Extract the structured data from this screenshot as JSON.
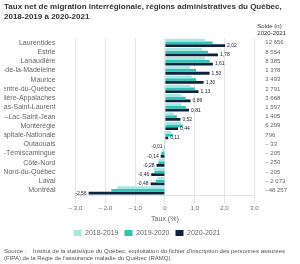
{
  "chart_data": {
    "type": "bar",
    "orientation": "horizontal",
    "title": "Taux net de migration interrégionale, régions administratives du Québec, 2018-2019 à 2020-2021",
    "source": "Source :    Institut de la statistique du Québec, exploitation du fichier d'inscription des personnes assurées (FIPA) de la Régie de l'assurance maladie du Québec (RAMQ).",
    "xlabel": "Taux (%)",
    "categories": [
      "Laurentides",
      "Estrie",
      "Lanaudière",
      "Gaspésie–Îles-de-la-Madeleine",
      "Maurice",
      "Centre-du-Québec",
      "Chaudière-Appalaches",
      "Bas-Saint-Laurent",
      "Saguenay–Lac-Saint-Jean",
      "Montérégie",
      "Capitale-Nationale",
      "Outaouais",
      "Abitibi-Témiscamingue",
      "Côte-Nord",
      "Nord-du-Québec",
      "Laval",
      "Montréal"
    ],
    "right_labels_title": [
      "Solde (n)",
      "2020-2021"
    ],
    "right_labels": [
      "12 656",
      "8 554",
      "8 385",
      "1 378",
      "3 493",
      "2 791",
      "3 668",
      "1 597",
      "1 405",
      "6 299",
      "796",
      "– 33",
      "– 205",
      "– 250",
      "– 205",
      "– 2 073",
      "–48 257"
    ],
    "series": [
      {
        "name": "2018-2019",
        "color": "#a8e8e2",
        "values": [
          1.35,
          1.25,
          1.35,
          0.85,
          0.9,
          0.85,
          0.55,
          0.55,
          0.3,
          0.55,
          0.2,
          0.05,
          -0.1,
          -0.2,
          -0.38,
          -0.25,
          -1.6
        ]
      },
      {
        "name": "2019-2020",
        "color": "#2ec4b6",
        "values": [
          1.6,
          1.45,
          1.5,
          1.05,
          1.05,
          1.0,
          0.7,
          0.7,
          0.4,
          0.6,
          0.28,
          -0.02,
          -0.12,
          -0.22,
          -0.35,
          -0.3,
          -1.8
        ]
      },
      {
        "name": "2020-2021",
        "color": "#0d2240",
        "values": [
          2.02,
          1.78,
          1.61,
          1.5,
          1.3,
          1.13,
          0.86,
          0.81,
          0.52,
          0.44,
          0.11,
          -0.01,
          -0.14,
          -0.28,
          -0.46,
          -0.48,
          -2.56
        ],
        "data_labels": true,
        "value_labels": [
          "2,02",
          "1,78",
          "1,61",
          "1,50",
          "1,30",
          "1,13",
          "0,86",
          "0,81",
          "0,52",
          "0,44",
          "0,11",
          "-0,01",
          "-0,14",
          "-0,28",
          "-0,46",
          "-0,48",
          "-2,56"
        ]
      }
    ],
    "xlim": [
      -3,
      3
    ],
    "xticks": [
      {
        "value": -3,
        "label": "– 3,0"
      },
      {
        "value": -2,
        "label": "– 2,0"
      },
      {
        "value": -1,
        "label": "– 1,0"
      },
      0,
      {
        "value": 1,
        "label": "1,0"
      },
      {
        "value": 2,
        "label": "2,0"
      },
      {
        "value": 3,
        "label": "3,0"
      }
    ],
    "grid": true,
    "legend": "bottom"
  }
}
